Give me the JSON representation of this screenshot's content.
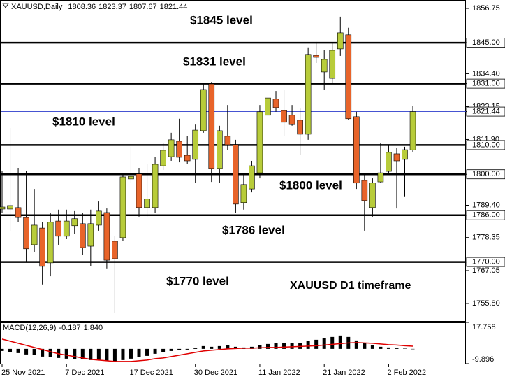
{
  "chart_data": {
    "type": "candlestick",
    "symbol": "XAUUSD,Daily",
    "annotation": "XAUUSD D1 timeframe",
    "categories": [
      "25 Nov 2021",
      null,
      null,
      null,
      null,
      null,
      null,
      null,
      "7 Dec 2021",
      null,
      null,
      null,
      null,
      null,
      null,
      null,
      "17 Dec 2021",
      null,
      null,
      null,
      null,
      null,
      null,
      null,
      "30 Dec 2021",
      null,
      null,
      null,
      null,
      null,
      null,
      null,
      "11 Jan 2022",
      null,
      null,
      null,
      null,
      null,
      null,
      null,
      "21 Jan 2022",
      null,
      null,
      null,
      null,
      null,
      null,
      null,
      "2 Feb 2022",
      null,
      null,
      null
    ],
    "open": [
      1788.1,
      1788.1,
      1788.6,
      1785.2,
      1775.9,
      1781.6,
      1769.7,
      1784.0,
      1778.8,
      1782.4,
      1783.1,
      1775.4,
      1782.6,
      1786.9,
      1777.1,
      1778.3,
      1798.4,
      1800.1,
      1788.6,
      1788.6,
      1802.9,
      1806.0,
      1811.3,
      1806.5,
      1805.1,
      1814.9,
      1830.9,
      1802.0,
      1813.0,
      1810.1,
      1790.3,
      1795.0,
      1800.5,
      1820.2,
      1825.7,
      1821.8,
      1820.2,
      1818.5,
      1813.7,
      1840.7,
      1835.0,
      1832.8,
      1842.9,
      1847.7,
      1819.7,
      1797.9,
      1788.6,
      1797.4,
      1801.0,
      1807.0,
      1805.1,
      1808.36
    ],
    "high": [
      1801.0,
      1815.9,
      1802.2,
      1801.0,
      1795.0,
      1783.6,
      1786.7,
      1787.9,
      1787.9,
      1787.4,
      1786.7,
      1787.9,
      1790.7,
      1788.3,
      1778.8,
      1799.8,
      1809.4,
      1802.2,
      1803.4,
      1805.8,
      1810.6,
      1814.2,
      1819.0,
      1813.0,
      1817.0,
      1830.9,
      1831.6,
      1816.6,
      1823.7,
      1811.8,
      1799.8,
      1804.6,
      1823.7,
      1828.5,
      1828.5,
      1829.0,
      1823.7,
      1822.5,
      1843.4,
      1845.3,
      1842.4,
      1844.8,
      1853.9,
      1850.1,
      1821.4,
      1799.8,
      1798.6,
      1810.6,
      1810.1,
      1808.9,
      1809.4,
      1823.37
    ],
    "low": [
      1786.7,
      1780.7,
      1783.6,
      1769.9,
      1773.5,
      1762.3,
      1765.1,
      1775.9,
      1777.8,
      1779.5,
      1772.3,
      1768.7,
      1780.7,
      1767.8,
      1752.5,
      1777.1,
      1797.0,
      1785.5,
      1785.5,
      1786.7,
      1801.5,
      1804.6,
      1804.1,
      1803.4,
      1797.0,
      1814.2,
      1797.4,
      1797.0,
      1808.2,
      1786.7,
      1787.9,
      1793.8,
      1798.6,
      1816.6,
      1821.4,
      1813.0,
      1816.6,
      1806.5,
      1811.8,
      1838.1,
      1829.0,
      1830.9,
      1840.5,
      1818.5,
      1795.0,
      1780.7,
      1785.5,
      1797.0,
      1799.8,
      1788.3,
      1792.2,
      1807.67
    ],
    "close": [
      1788.8,
      1789.3,
      1785.2,
      1774.5,
      1782.6,
      1768.5,
      1783.6,
      1778.8,
      1784.0,
      1784.8,
      1774.9,
      1783.1,
      1787.4,
      1770.6,
      1771.1,
      1799.1,
      1799.3,
      1788.6,
      1791.5,
      1803.4,
      1808.2,
      1811.8,
      1805.8,
      1804.6,
      1815.1,
      1829.0,
      1802.0,
      1814.9,
      1810.1,
      1789.8,
      1796.5,
      1802.9,
      1821.4,
      1826.1,
      1822.8,
      1817.8,
      1817.0,
      1813.7,
      1841.0,
      1840.0,
      1839.3,
      1842.4,
      1848.4,
      1819.0,
      1797.0,
      1791.0,
      1797.0,
      1800.5,
      1807.5,
      1804.6,
      1808.4,
      1821.44
    ],
    "up_color": "#b8cc3a",
    "down_color": "#e8642a",
    "price_line_color": "#2c3ccc",
    "level_color": "#000000",
    "ylim": [
      1750.05,
      1859.14
    ],
    "yticks": [
      1856.75,
      {
        "value": 1845,
        "label": "1845.00"
      },
      {
        "value": 1834.4,
        "label": "1834.40"
      },
      {
        "value": 1831,
        "label": "1831.00"
      },
      1823.15,
      1821.44,
      {
        "value": 1811.9,
        "label": "1811.90"
      },
      {
        "value": 1810,
        "label": "1810.00"
      },
      {
        "value": 1800,
        "label": "1800.00"
      },
      {
        "value": 1789.4,
        "label": "1789.40"
      },
      {
        "value": 1786,
        "label": "1786.00"
      },
      1778.35,
      {
        "value": 1770,
        "label": "1770.00"
      },
      1767.05,
      {
        "value": 1755.8,
        "label": "1755.80"
      }
    ],
    "levels": [
      {
        "value": 1845,
        "label": "$1845 level"
      },
      {
        "value": 1831,
        "label": "$1831 level"
      },
      {
        "value": 1810,
        "label": "$1810 level"
      },
      {
        "value": 1800,
        "label": "$1800 level"
      },
      {
        "value": 1786,
        "label": "$1786 level"
      },
      {
        "value": 1770,
        "label": "$1770 level"
      }
    ],
    "macd": {
      "title": "MACD(12,26,9)",
      "last_signal": {
        "value": 1.84,
        "label": "1.840"
      },
      "histogram": [
        -1.41,
        -2.34,
        -2.81,
        -3.75,
        -4.22,
        -5.16,
        -5.62,
        -6.09,
        -6.56,
        -7.03,
        -7.03,
        -7.5,
        -7.5,
        -7.97,
        -8.44,
        -7.5,
        -6.56,
        -5.62,
        -4.69,
        -3.28,
        -2.34,
        -1.41,
        -0.94,
        -0.47,
        0.47,
        1.87,
        1.41,
        1.87,
        2.34,
        1.41,
        0.94,
        1.41,
        2.34,
        3.28,
        3.75,
        3.75,
        3.75,
        3.75,
        5.16,
        6.09,
        7.03,
        7.97,
        8.91,
        7.97,
        5.62,
        3.75,
        2.34,
        1.41,
        0.94,
        0.47,
        0.23,
        -0.187
      ],
      "signal": [
        6.56,
        5.16,
        3.75,
        2.34,
        0.94,
        -0.47,
        -1.87,
        -3.28,
        -4.22,
        -5.16,
        -6.09,
        -7.03,
        -7.5,
        -7.97,
        -8.44,
        -8.44,
        -8.44,
        -7.97,
        -7.5,
        -6.56,
        -6.09,
        -5.16,
        -4.22,
        -3.28,
        -2.34,
        -1.41,
        -0.94,
        -0.47,
        0,
        0.23,
        0.47,
        0.47,
        0.7,
        0.94,
        0.94,
        1.17,
        1.41,
        1.64,
        1.87,
        2.11,
        2.58,
        3.05,
        3.52,
        3.98,
        4.22,
        3.98,
        3.75,
        3.28,
        2.81,
        2.58,
        2.11,
        1.84
      ],
      "histogram_color": "#000000",
      "signal_color": "#e00000",
      "ylim": [
        -9.896,
        17.758
      ],
      "yticks": [
        17.758,
        -9.896
      ]
    }
  }
}
